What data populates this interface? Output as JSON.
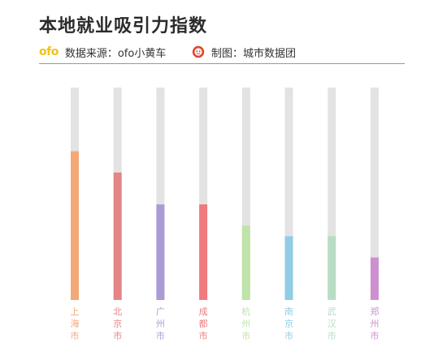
{
  "title": "本地就业吸引力指数",
  "source": {
    "logo_text": "ofo",
    "label": "数据来源：ofo小黄车"
  },
  "maker": {
    "icon": "red-brand-icon",
    "label": "制图：城市数据团"
  },
  "colors": {
    "track": "#e3e3e3",
    "title": "#2b2b2b",
    "ofo_yellow": "#f3c11a",
    "maker_red": "#e2452d"
  },
  "chart_data": {
    "type": "bar",
    "orientation": "vertical",
    "title": "本地就业吸引力指数",
    "xlabel": "",
    "ylabel": "",
    "ylim": [
      0,
      100
    ],
    "grid": false,
    "legend": "none",
    "categories": [
      "上海市",
      "北京市",
      "广州市",
      "成都市",
      "杭州市",
      "南京市",
      "武汉市",
      "郑州市"
    ],
    "values": [
      70,
      60,
      45,
      45,
      35,
      30,
      30,
      20
    ],
    "colors": [
      "#f3a878",
      "#e58586",
      "#ab9bd4",
      "#ef7b7d",
      "#bfe3a8",
      "#91cce6",
      "#b8ddc5",
      "#cd8fd0"
    ]
  }
}
